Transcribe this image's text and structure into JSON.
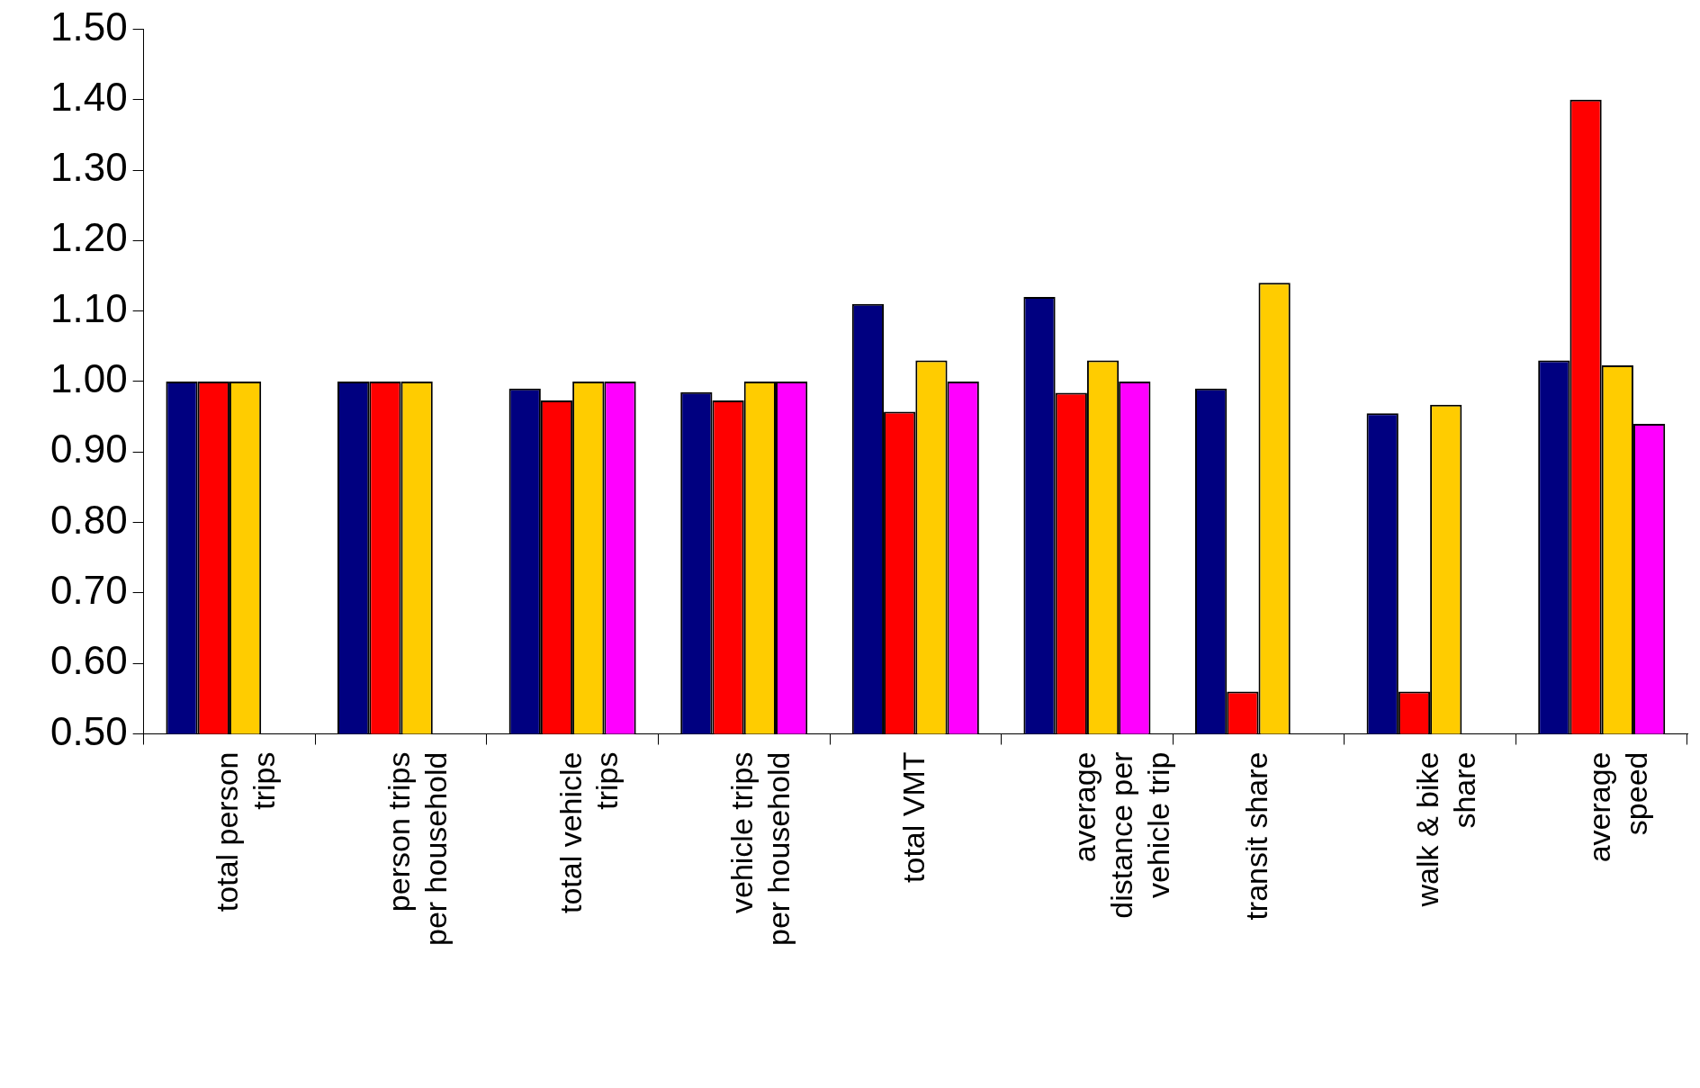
{
  "chart_data": {
    "type": "bar",
    "categories": [
      "total person\ntrips",
      "person trips\nper household",
      "total vehicle\ntrips",
      "vehicle trips\nper household",
      "total VMT",
      "average\ndistance per\nvehicle trip",
      "transit share",
      "walk & bike\nshare",
      "average\nspeed"
    ],
    "series": [
      {
        "color": "#000080",
        "values": [
          1.0,
          1.0,
          0.99,
          0.985,
          1.11,
          1.12,
          0.99,
          0.955,
          1.03
        ]
      },
      {
        "color": "#ff0000",
        "values": [
          1.0,
          1.0,
          0.973,
          0.973,
          0.957,
          0.984,
          0.56,
          0.56,
          1.4
        ]
      },
      {
        "color": "#ffcc00",
        "values": [
          1.0,
          1.0,
          1.0,
          1.0,
          1.03,
          1.03,
          1.14,
          0.967,
          1.023
        ]
      },
      {
        "color": "#ff00ff",
        "values": [
          null,
          null,
          1.0,
          1.0,
          1.0,
          1.0,
          null,
          null,
          0.94
        ]
      }
    ],
    "ylim": [
      0.5,
      1.5
    ],
    "yticks": [
      {
        "value": 0.5,
        "label": "0.50"
      },
      {
        "value": 0.6,
        "label": "0.60"
      },
      {
        "value": 0.7,
        "label": "0.70"
      },
      {
        "value": 0.8,
        "label": "0.80"
      },
      {
        "value": 0.9,
        "label": "0.90"
      },
      {
        "value": 1.0,
        "label": "1.00"
      },
      {
        "value": 1.1,
        "label": "1.10"
      },
      {
        "value": 1.2,
        "label": "1.20"
      },
      {
        "value": 1.3,
        "label": "1.30"
      },
      {
        "value": 1.4,
        "label": "1.40"
      },
      {
        "value": 1.5,
        "label": "1.50"
      }
    ],
    "grid": false,
    "legend": false
  }
}
